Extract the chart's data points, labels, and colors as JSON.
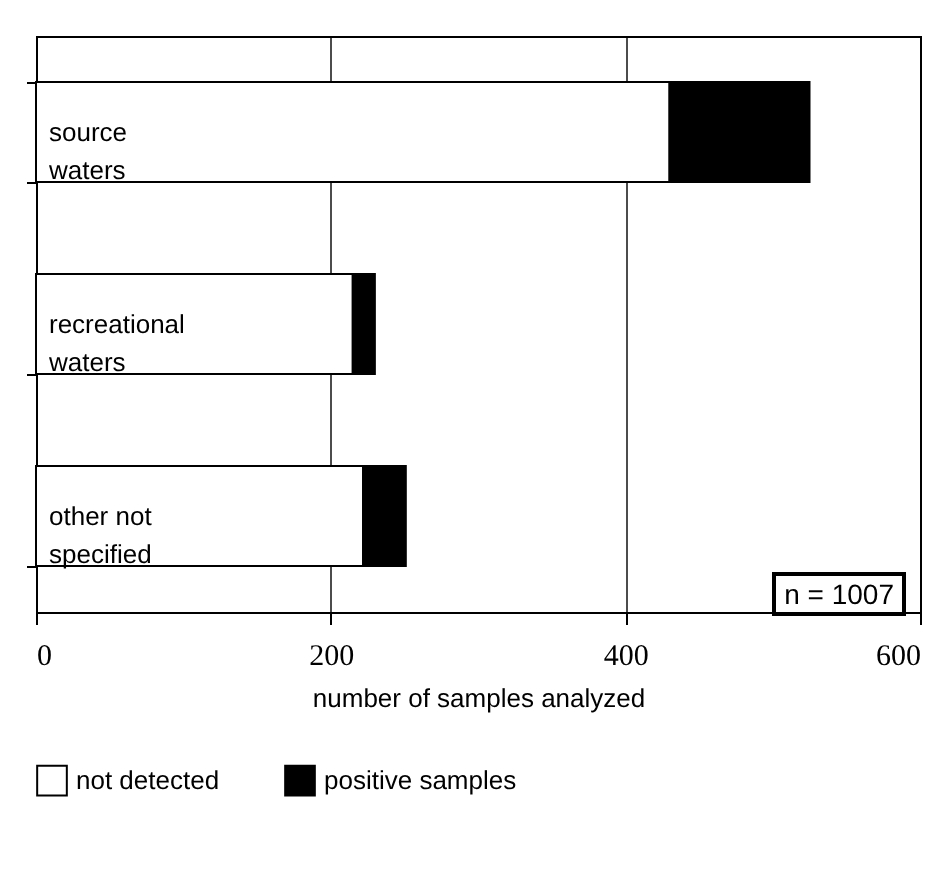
{
  "chart_data": {
    "type": "bar",
    "orientation": "horizontal",
    "stacked": true,
    "categories": [
      "source waters",
      "recreational waters",
      "other not specified"
    ],
    "series": [
      {
        "name": "not detected",
        "color": "#ffffff",
        "values": [
          430,
          215,
          222
        ]
      },
      {
        "name": "positive samples",
        "color": "#000000",
        "values": [
          95,
          15,
          29
        ]
      }
    ],
    "xlabel": "number of samples analyzed",
    "xlim": [
      0,
      600
    ],
    "xticks": [
      0,
      200,
      400,
      600
    ],
    "grid": "x",
    "legend": "bottom",
    "annotations": [
      "n = 1007"
    ]
  }
}
